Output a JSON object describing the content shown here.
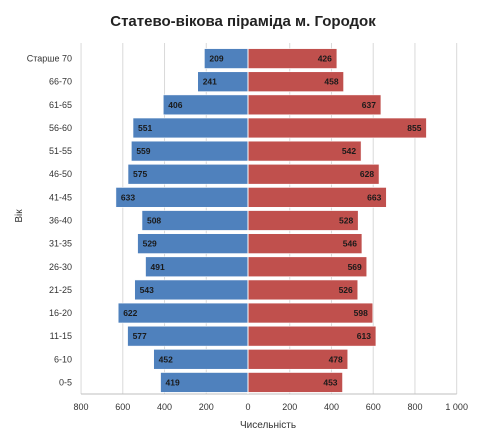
{
  "chart_data": {
    "type": "bar",
    "orientation": "horizontal",
    "title": "Статево-вікова піраміда м. Городок",
    "xlabel": "Чисельність",
    "ylabel": "Вік",
    "categories": [
      "0-5",
      "6-10",
      "11-15",
      "16-20",
      "21-25",
      "26-30",
      "31-35",
      "36-40",
      "41-45",
      "46-50",
      "51-55",
      "56-60",
      "61-65",
      "66-70",
      "Старше 70"
    ],
    "series": [
      {
        "color": "#4f81bd",
        "values": [
          419,
          452,
          577,
          622,
          543,
          491,
          529,
          508,
          633,
          575,
          559,
          551,
          406,
          241,
          209
        ]
      },
      {
        "color": "#c0504d",
        "values": [
          453,
          478,
          613,
          598,
          526,
          569,
          546,
          528,
          663,
          628,
          542,
          855,
          637,
          458,
          426
        ]
      }
    ],
    "xlim": [
      -800,
      1000
    ],
    "xticks": [
      -800,
      -600,
      -400,
      -200,
      0,
      200,
      400,
      600,
      800,
      1000
    ],
    "xtick_labels": [
      "800",
      "600",
      "400",
      "200",
      "0",
      "200",
      "400",
      "600",
      "800",
      "1 000"
    ],
    "grid": true,
    "legend": "none"
  }
}
